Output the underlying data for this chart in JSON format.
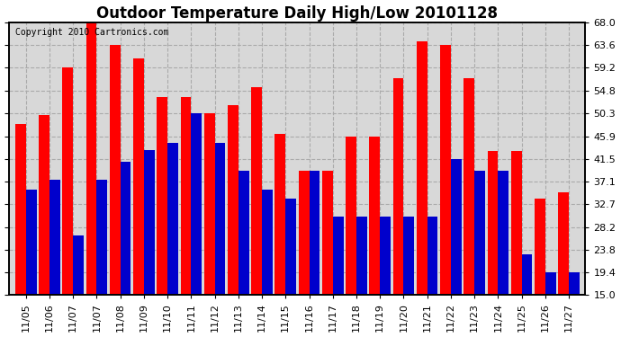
{
  "title": "Outdoor Temperature Daily High/Low 20101128",
  "copyright": "Copyright 2010 Cartronics.com",
  "dates": [
    "11/05",
    "11/06",
    "11/07",
    "11/07",
    "11/08",
    "11/09",
    "11/10",
    "11/11",
    "11/12",
    "11/13",
    "11/14",
    "11/15",
    "11/16",
    "11/17",
    "11/18",
    "11/19",
    "11/20",
    "11/21",
    "11/22",
    "11/23",
    "11/24",
    "11/25",
    "11/26",
    "11/27"
  ],
  "highs": [
    48.2,
    50.0,
    59.2,
    68.0,
    63.6,
    61.0,
    53.6,
    53.6,
    50.3,
    52.0,
    55.4,
    46.4,
    39.2,
    39.2,
    45.9,
    45.9,
    57.2,
    64.4,
    63.6,
    57.2,
    43.0,
    43.0,
    33.8,
    35.0
  ],
  "lows": [
    35.6,
    37.4,
    26.6,
    37.4,
    41.0,
    43.2,
    44.6,
    50.3,
    44.6,
    39.2,
    35.6,
    33.8,
    39.2,
    30.2,
    30.2,
    30.2,
    30.2,
    30.2,
    41.5,
    39.2,
    39.2,
    23.0,
    19.4,
    19.4
  ],
  "ylim": [
    15.0,
    68.0
  ],
  "yticks": [
    15.0,
    19.4,
    23.8,
    28.2,
    32.7,
    37.1,
    41.5,
    45.9,
    50.3,
    54.8,
    59.2,
    63.6,
    68.0
  ],
  "bar_color_high": "#ff0000",
  "bar_color_low": "#0000cc",
  "plot_bg_color": "#d8d8d8",
  "fig_bg_color": "#ffffff",
  "grid_color": "#aaaaaa",
  "title_fontsize": 12,
  "tick_fontsize": 8,
  "copyright_fontsize": 7
}
